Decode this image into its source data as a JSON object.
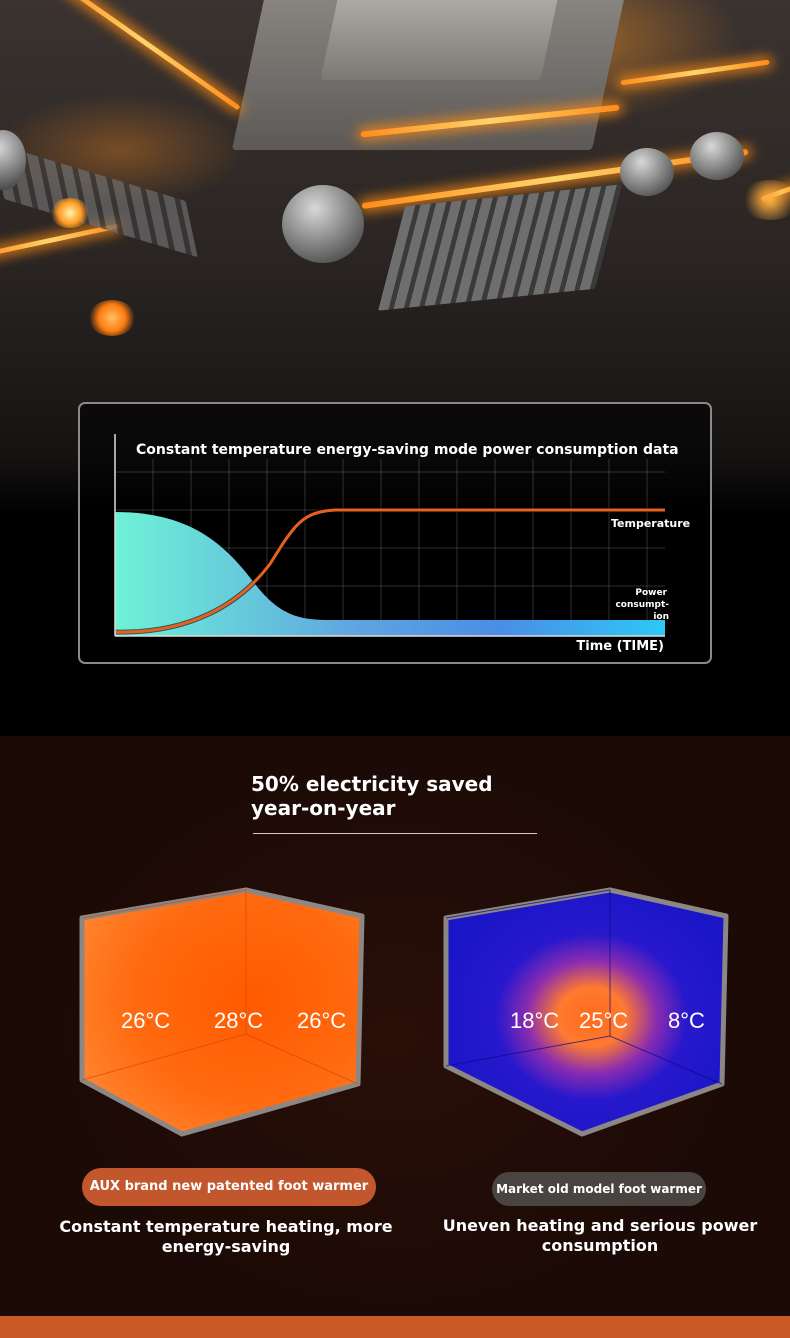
{
  "chart": {
    "title": "Constant temperature energy-saving mode power consumption data",
    "temperature_label": "Temperature",
    "power_label_lines": [
      "Power",
      "consumpt-",
      "ion"
    ],
    "time_label": "Time (TIME)"
  },
  "headline": "50% electricity saved year-on-year",
  "comparison": {
    "left": {
      "temps": [
        "26°C",
        "28°C",
        "26°C"
      ],
      "badge": "AUX brand new patented foot warmer",
      "caption": "Constant temperature heating, more energy-saving",
      "color": "#ff6a10"
    },
    "right": {
      "temps": [
        "18°C",
        "25°C",
        "8°C"
      ],
      "badge": "Market old model foot warmer",
      "caption": "Uneven heating and serious power consumption",
      "color": "#1a16c8"
    }
  },
  "colors": {
    "accent": "#e8601e",
    "temperature_curve": "#e8601e",
    "power_fill_start": "#6ef2d6",
    "power_fill_end": "#2ec8f5",
    "badge_left": "#c2562c",
    "badge_right": "#4a4441",
    "background": "#1b0a06"
  }
}
